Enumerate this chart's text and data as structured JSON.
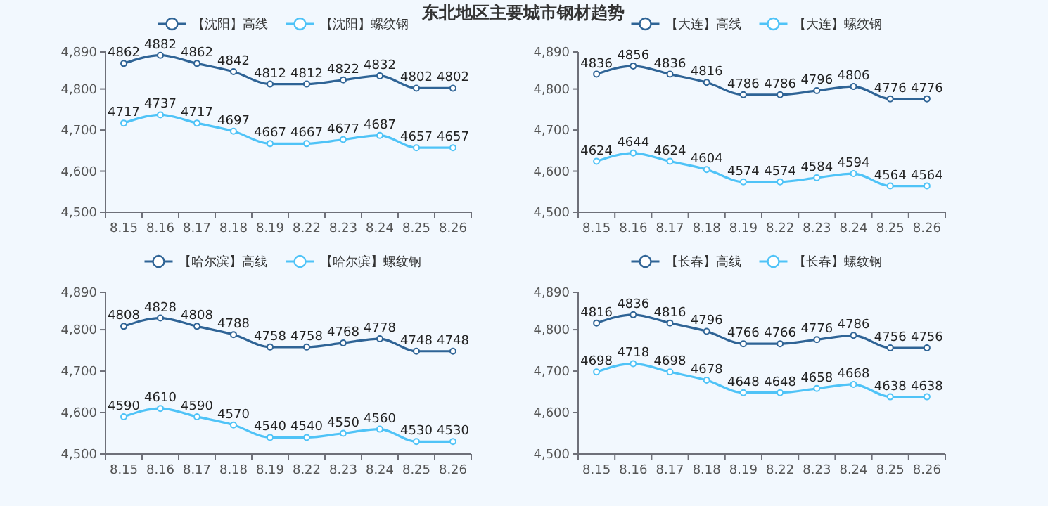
{
  "chart_data": [
    {
      "type": "line",
      "title": "东北地区主要城市钢材趋势",
      "categories": [
        "8.15",
        "8.16",
        "8.17",
        "8.18",
        "8.19",
        "8.22",
        "8.23",
        "8.24",
        "8.25",
        "8.26"
      ],
      "series": [
        {
          "name": "【沈阳】高线",
          "color": "#2f6496",
          "values": [
            4862,
            4882,
            4862,
            4842,
            4812,
            4812,
            4822,
            4832,
            4802,
            4802
          ]
        },
        {
          "name": "【沈阳】螺纹钢",
          "color": "#4fc3f7",
          "values": [
            4717,
            4737,
            4717,
            4697,
            4667,
            4667,
            4677,
            4687,
            4657,
            4657
          ]
        }
      ],
      "ylim": [
        4500,
        4890
      ],
      "yticks": [
        {
          "value": 4500,
          "label": "4,500"
        },
        {
          "value": 4600,
          "label": "4,600"
        },
        {
          "value": 4700,
          "label": "4,700"
        },
        {
          "value": 4800,
          "label": "4,800"
        },
        {
          "value": 4890,
          "label": "4,890"
        }
      ],
      "data_labels": true,
      "legend": "top",
      "marker": "circle",
      "grid": false
    },
    {
      "type": "line",
      "categories": [
        "8.15",
        "8.16",
        "8.17",
        "8.18",
        "8.19",
        "8.22",
        "8.23",
        "8.24",
        "8.25",
        "8.26"
      ],
      "series": [
        {
          "name": "【大连】高线",
          "color": "#2f6496",
          "values": [
            4836,
            4856,
            4836,
            4816,
            4786,
            4786,
            4796,
            4806,
            4776,
            4776
          ]
        },
        {
          "name": "【大连】螺纹钢",
          "color": "#4fc3f7",
          "values": [
            4624,
            4644,
            4624,
            4604,
            4574,
            4574,
            4584,
            4594,
            4564,
            4564
          ]
        }
      ],
      "ylim": [
        4500,
        4890
      ],
      "yticks": [
        {
          "value": 4500,
          "label": "4,500"
        },
        {
          "value": 4600,
          "label": "4,600"
        },
        {
          "value": 4700,
          "label": "4,700"
        },
        {
          "value": 4800,
          "label": "4,800"
        },
        {
          "value": 4890,
          "label": "4,890"
        }
      ],
      "data_labels": true,
      "legend": "top",
      "marker": "circle",
      "grid": false
    },
    {
      "type": "line",
      "categories": [
        "8.15",
        "8.16",
        "8.17",
        "8.18",
        "8.19",
        "8.22",
        "8.23",
        "8.24",
        "8.25",
        "8.26"
      ],
      "series": [
        {
          "name": "【哈尔滨】高线",
          "color": "#2f6496",
          "values": [
            4808,
            4828,
            4808,
            4788,
            4758,
            4758,
            4768,
            4778,
            4748,
            4748
          ]
        },
        {
          "name": "【哈尔滨】螺纹钢",
          "color": "#4fc3f7",
          "values": [
            4590,
            4610,
            4590,
            4570,
            4540,
            4540,
            4550,
            4560,
            4530,
            4530
          ]
        }
      ],
      "ylim": [
        4500,
        4890
      ],
      "yticks": [
        {
          "value": 4500,
          "label": "4,500"
        },
        {
          "value": 4600,
          "label": "4,600"
        },
        {
          "value": 4700,
          "label": "4,700"
        },
        {
          "value": 4800,
          "label": "4,800"
        },
        {
          "value": 4890,
          "label": "4,890"
        }
      ],
      "data_labels": true,
      "legend": "top",
      "marker": "circle",
      "grid": false
    },
    {
      "type": "line",
      "categories": [
        "8.15",
        "8.16",
        "8.17",
        "8.18",
        "8.19",
        "8.22",
        "8.23",
        "8.24",
        "8.25",
        "8.26"
      ],
      "series": [
        {
          "name": "【长春】高线",
          "color": "#2f6496",
          "values": [
            4816,
            4836,
            4816,
            4796,
            4766,
            4766,
            4776,
            4786,
            4756,
            4756
          ]
        },
        {
          "name": "【长春】螺纹钢",
          "color": "#4fc3f7",
          "values": [
            4698,
            4718,
            4698,
            4678,
            4648,
            4648,
            4658,
            4668,
            4638,
            4638
          ]
        }
      ],
      "ylim": [
        4500,
        4890
      ],
      "yticks": [
        {
          "value": 4500,
          "label": "4,500"
        },
        {
          "value": 4600,
          "label": "4,600"
        },
        {
          "value": 4700,
          "label": "4,700"
        },
        {
          "value": 4800,
          "label": "4,800"
        },
        {
          "value": 4890,
          "label": "4,890"
        }
      ],
      "data_labels": true,
      "legend": "top",
      "marker": "circle",
      "grid": false
    }
  ]
}
